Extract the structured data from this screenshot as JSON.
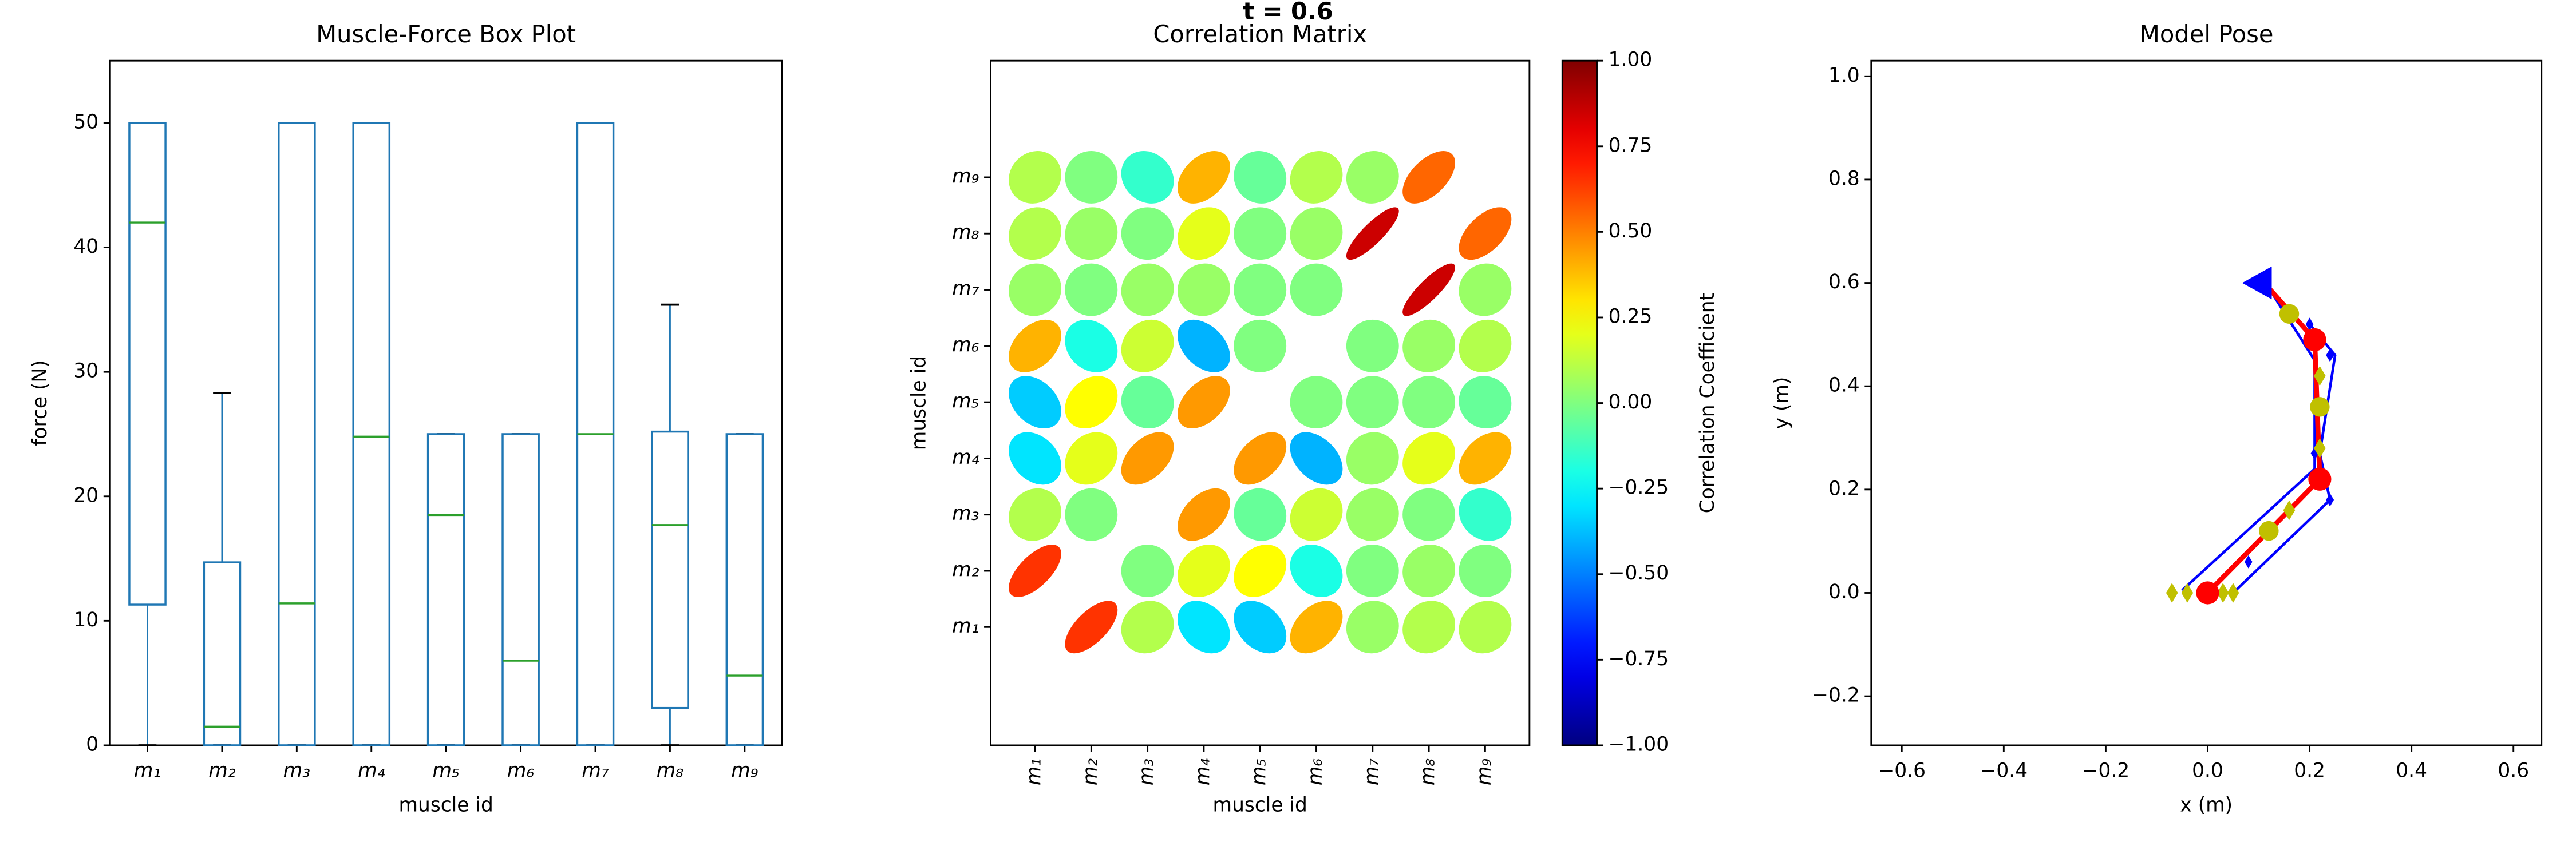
{
  "title": "t = 0.6",
  "chart_data": [
    {
      "type": "box",
      "title": "Muscle-Force Box Plot",
      "x_label": "muscle id",
      "y_label": "force (N)",
      "categories": [
        "m₁",
        "m₂",
        "m₃",
        "m₄",
        "m₅",
        "m₆",
        "m₇",
        "m₈",
        "m₉"
      ],
      "boxes": [
        {
          "min": 0,
          "q1": 11.3,
          "median": 42,
          "q3": 50,
          "max": 50
        },
        {
          "min": 0,
          "q1": 0,
          "median": 1.5,
          "q3": 14.7,
          "max": 28.3
        },
        {
          "min": 0,
          "q1": 0,
          "median": 11.4,
          "q3": 50,
          "max": 50
        },
        {
          "min": 0,
          "q1": 0,
          "median": 24.8,
          "q3": 50,
          "max": 50
        },
        {
          "min": 0,
          "q1": 0,
          "median": 18.5,
          "q3": 25,
          "max": 25
        },
        {
          "min": 0,
          "q1": 0,
          "median": 6.8,
          "q3": 25,
          "max": 25
        },
        {
          "min": 0,
          "q1": 0,
          "median": 25,
          "q3": 50,
          "max": 50
        },
        {
          "min": 0,
          "q1": 3,
          "median": 17.7,
          "q3": 25.2,
          "max": 35.4
        },
        {
          "min": 0,
          "q1": 0,
          "median": 5.6,
          "q3": 25,
          "max": 25
        }
      ],
      "color": "#1f77b4",
      "median_color": "#2ca02c",
      "ylim": [
        0,
        55
      ],
      "yticks": [
        0,
        10,
        20,
        30,
        40,
        50
      ]
    },
    {
      "type": "corr",
      "title": "Correlation Matrix",
      "x_label": "muscle id",
      "y_label": "muscle id",
      "colorbar_label": "Correlation Coefficient",
      "colormap": "jet",
      "categories": [
        "m₁",
        "m₂",
        "m₃",
        "m₄",
        "m₅",
        "m₆",
        "m₇",
        "m₈",
        "m₉"
      ],
      "matrix": [
        [
          null,
          0.65,
          0.1,
          -0.3,
          -0.35,
          0.4,
          0.05,
          0.1,
          0.1
        ],
        [
          0.65,
          null,
          0.0,
          0.2,
          0.25,
          -0.2,
          0.0,
          0.05,
          0.0
        ],
        [
          0.1,
          0.0,
          null,
          0.45,
          -0.05,
          0.15,
          0.05,
          0.0,
          -0.15
        ],
        [
          -0.3,
          0.2,
          0.45,
          null,
          0.45,
          -0.4,
          0.05,
          0.2,
          0.4
        ],
        [
          -0.35,
          0.25,
          -0.05,
          0.45,
          null,
          0.0,
          0.0,
          0.0,
          -0.05
        ],
        [
          0.4,
          -0.2,
          0.15,
          -0.4,
          0.0,
          null,
          0.0,
          0.05,
          0.1
        ],
        [
          0.05,
          0.0,
          0.05,
          0.05,
          0.0,
          0.0,
          null,
          0.85,
          0.05
        ],
        [
          0.1,
          0.05,
          0.0,
          0.2,
          0.0,
          0.05,
          0.85,
          null,
          0.55
        ],
        [
          0.1,
          0.0,
          -0.15,
          0.4,
          -0.05,
          0.1,
          0.05,
          0.55,
          null
        ]
      ],
      "clim": [
        -1,
        1
      ],
      "cticks": [
        {
          "value": -1,
          "label": "−1.00"
        },
        {
          "value": -0.75,
          "label": "−0.75"
        },
        {
          "value": -0.5,
          "label": "−0.50"
        },
        {
          "value": -0.25,
          "label": "−0.25"
        },
        {
          "value": 0,
          "label": "0.00"
        },
        {
          "value": 0.25,
          "label": "0.25"
        },
        {
          "value": 0.5,
          "label": "0.50"
        },
        {
          "value": 0.75,
          "label": "0.75"
        },
        {
          "value": 1,
          "label": "1.00"
        }
      ]
    },
    {
      "type": "pose",
      "title": "Model Pose",
      "x_label": "x (m)",
      "y_label": "y (m)",
      "xlim": [
        -0.66,
        0.655
      ],
      "ylim": [
        -0.295,
        1.03
      ],
      "xticks": [
        {
          "value": -0.6,
          "label": "−0.6"
        },
        {
          "value": -0.4,
          "label": "−0.4"
        },
        {
          "value": -0.2,
          "label": "−0.2"
        },
        {
          "value": 0,
          "label": "0.0"
        },
        0.2,
        0.4,
        0.6
      ],
      "yticks": [
        {
          "value": -0.2,
          "label": "−0.2"
        },
        {
          "value": 0,
          "label": "0.0"
        },
        0.2,
        0.4,
        0.6,
        0.8,
        {
          "value": 1,
          "label": "1.0"
        }
      ],
      "series": [
        {
          "color": "#0000ff",
          "marker": "line",
          "x": [
            -0.05,
            0.21,
            0.21,
            0.12
          ],
          "y": [
            0.005,
            0.24,
            0.45,
            0.59
          ]
        },
        {
          "color": "#0000ff",
          "marker": "line",
          "x": [
            0.05,
            0.24,
            0.22,
            0.25,
            0.2
          ],
          "y": [
            0.0,
            0.18,
            0.27,
            0.46,
            0.52
          ]
        },
        {
          "color": "#ff0000",
          "marker": "line",
          "x": [
            0,
            0.22,
            0.21,
            0.12
          ],
          "y": [
            0,
            0.22,
            0.49,
            0.59
          ]
        },
        {
          "color": "#0000ff",
          "marker": "diamond-small",
          "x": [
            0.24,
            0.24,
            0.2,
            0.21,
            0.08
          ],
          "y": [
            0.18,
            0.46,
            0.52,
            0.27,
            0.06
          ]
        },
        {
          "color": "#c0c000",
          "marker": "diamond",
          "x": [
            -0.07,
            -0.04,
            0.03,
            0.05,
            0.16,
            0.22,
            0.22
          ],
          "y": [
            0,
            0,
            0,
            0,
            0.16,
            0.28,
            0.42
          ]
        },
        {
          "color": "#ff0000",
          "marker": "circle",
          "x": [
            0,
            0.22,
            0.21
          ],
          "y": [
            0,
            0.22,
            0.49
          ]
        },
        {
          "color": "#c0c000",
          "marker": "circle-small",
          "x": [
            0.12,
            0.22,
            0.16
          ],
          "y": [
            0.12,
            0.36,
            0.54
          ]
        },
        {
          "color": "#0000ff",
          "marker": "triangle-left",
          "x": [
            0.1
          ],
          "y": [
            0.6
          ]
        }
      ]
    }
  ]
}
